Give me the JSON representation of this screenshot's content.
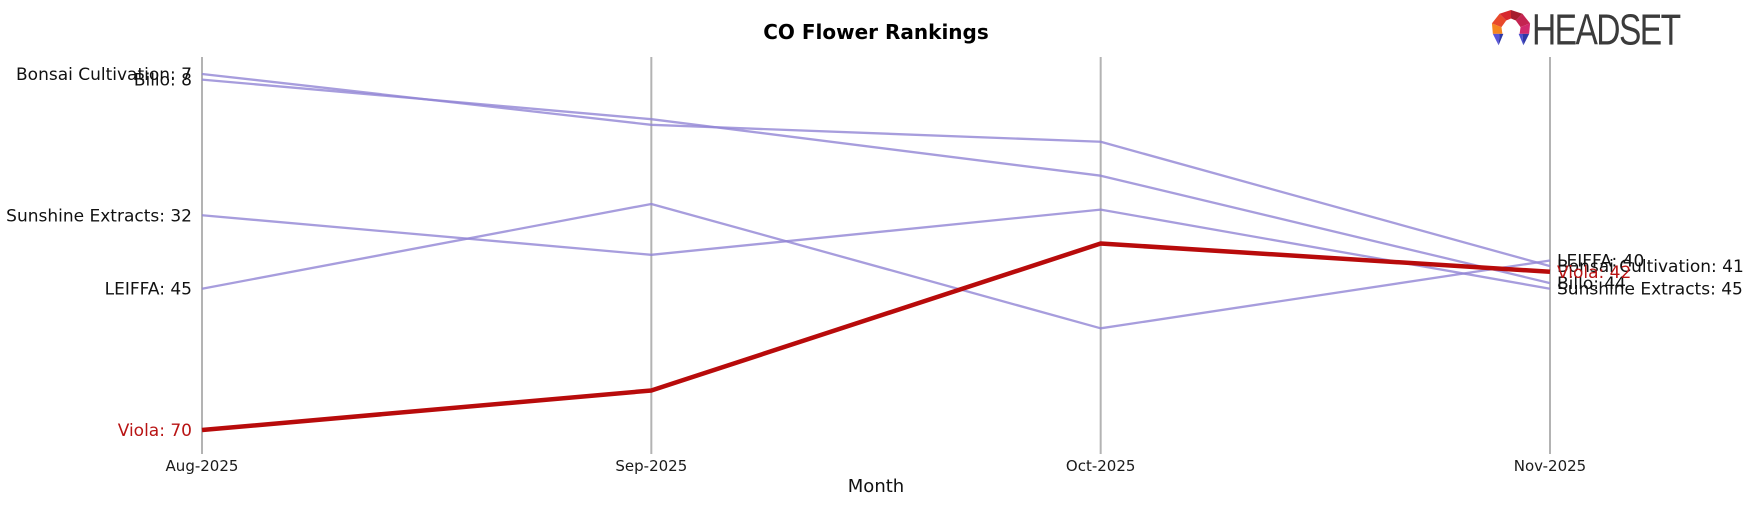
{
  "title": "CO Flower Rankings",
  "xlabel": "Month",
  "logo": {
    "brand": "HEADSET"
  },
  "colors": {
    "line_default": "#9184d5",
    "line_highlight": "#b80b0b",
    "highlight_label": "#b81414",
    "axis": "#b3b3b3",
    "label_text": "#111111",
    "tick_text": "#1a1a1a",
    "logo_text": "#3b3b3b"
  },
  "chart_data": {
    "type": "line",
    "title": "CO Flower Rankings",
    "xlabel": "Month",
    "ylabel": "",
    "categories": [
      "Aug-2025",
      "Sep-2025",
      "Oct-2025",
      "Nov-2025"
    ],
    "rank_axis": {
      "inverted": true,
      "top_rank": 4,
      "bottom_rank": 73
    },
    "grid": "vertical-axes-only",
    "legend": "none",
    "series": [
      {
        "name": "Bonsai Cultivation",
        "values": [
          7,
          16,
          19,
          41
        ],
        "highlight": false,
        "start_label": "Bonsai Cultivation: 7",
        "end_label": "Bonsai Cultivation: 41"
      },
      {
        "name": "Billo",
        "values": [
          8,
          15,
          25,
          44
        ],
        "highlight": false,
        "start_label": "Billo: 8",
        "end_label": "Billo: 44"
      },
      {
        "name": "Sunshine Extracts",
        "values": [
          32,
          39,
          31,
          45
        ],
        "highlight": false,
        "start_label": "Sunshine Extracts: 32",
        "end_label": "Sunshine Extracts: 45"
      },
      {
        "name": "LEIFFA",
        "values": [
          45,
          30,
          52,
          40
        ],
        "highlight": false,
        "start_label": "LEIFFA: 45",
        "end_label": "LEIFFA: 40"
      },
      {
        "name": "Viola",
        "values": [
          70,
          63,
          37,
          42
        ],
        "highlight": true,
        "start_label": "Viola: 70",
        "end_label": "Viola: 42"
      }
    ]
  }
}
